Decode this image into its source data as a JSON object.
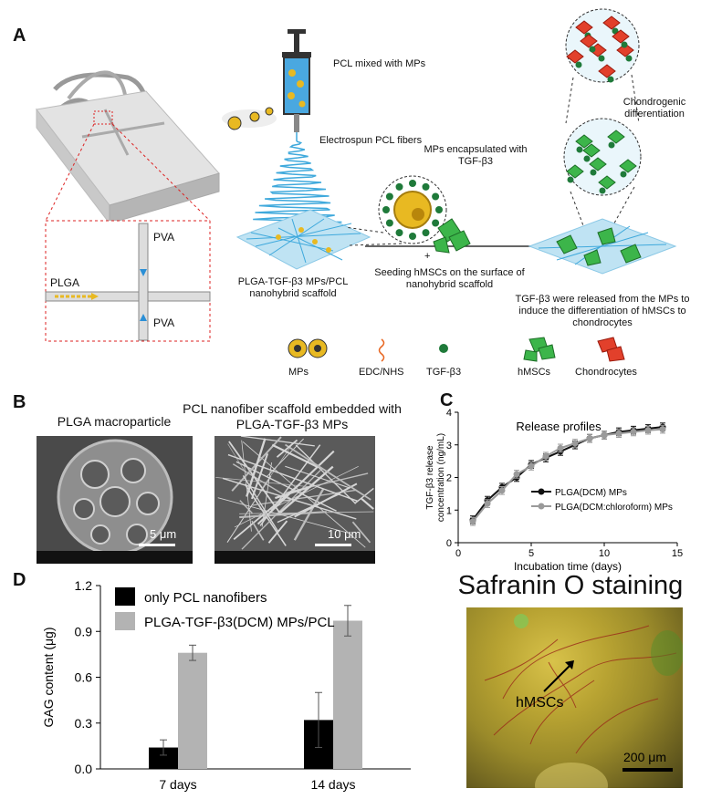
{
  "panel_a": {
    "label": "A",
    "device": {
      "plga": "PLGA",
      "pva_top": "PVA",
      "pva_bottom": "PVA"
    },
    "syringe_label": "PCL mixed with MPs",
    "fibers_label": "Electrospun PCL fibers",
    "mps_encapsulated": "MPs encapsulated with TGF-β3",
    "scaffold_label": "PLGA-TGF-β3 MPs/PCL nanohybrid scaffold",
    "seeding_label": "Seeding hMSCs on the surface of nanohybrid scaffold",
    "plus": "+",
    "release_label": "TGF-β3 were released from the MPs to induce the differentiation of hMSCs to chondrocytes",
    "chondrogenic_label": "Chondrogenic differentiation",
    "legend": {
      "mps": "MPs",
      "edc": "EDC/NHS",
      "tgf": "TGF-β3",
      "hmsc": "hMSCs",
      "chondro": "Chondrocytes"
    },
    "colors": {
      "fiber": "#3fa9dc",
      "mp": "#e8b922",
      "tgf": "#1f7a3a",
      "hmsc": "#3cb54a",
      "chondro": "#e2402b",
      "edc": "#e8641e"
    }
  },
  "panel_b": {
    "label": "B",
    "left_title": "PLGA macroparticle",
    "left_scale": "5 μm",
    "right_title": "PCL nanofiber scaffold embedded with PLGA-TGF-β3 MPs",
    "right_scale": "10 μm"
  },
  "panel_c": {
    "label": "C",
    "chart_data": {
      "type": "line",
      "title": "Release profiles",
      "xlabel": "Incubation time (days)",
      "ylabel": "TGF-β3 release concentration (ng/mL)",
      "xlim": [
        0,
        15
      ],
      "ylim": [
        0,
        4
      ],
      "xticks": [
        0,
        5,
        10,
        15
      ],
      "yticks": [
        0,
        1,
        2,
        3,
        4
      ],
      "x": [
        1,
        2,
        3,
        4,
        5,
        6,
        7,
        8,
        9,
        10,
        11,
        12,
        13,
        14
      ],
      "series": [
        {
          "name": "PLGA(DCM) MPs",
          "color": "#111111",
          "values": [
            0.7,
            1.3,
            1.7,
            2.0,
            2.4,
            2.6,
            2.8,
            3.0,
            3.2,
            3.3,
            3.4,
            3.45,
            3.5,
            3.55
          ],
          "errors": [
            0.12,
            0.12,
            0.12,
            0.12,
            0.12,
            0.12,
            0.12,
            0.12,
            0.12,
            0.12,
            0.12,
            0.12,
            0.12,
            0.12
          ]
        },
        {
          "name": "PLGA(DCM:chloroform) MPs",
          "color": "#9a9a9a",
          "values": [
            0.65,
            1.2,
            1.6,
            2.1,
            2.35,
            2.65,
            2.9,
            3.05,
            3.2,
            3.3,
            3.35,
            3.4,
            3.45,
            3.48
          ],
          "errors": [
            0.12,
            0.12,
            0.12,
            0.12,
            0.12,
            0.12,
            0.12,
            0.12,
            0.12,
            0.12,
            0.12,
            0.12,
            0.12,
            0.12
          ]
        }
      ],
      "legend": "bottom-right"
    }
  },
  "panel_d": {
    "label": "D",
    "chart_data": {
      "type": "bar",
      "categories": [
        "7 days",
        "14 days"
      ],
      "ylabel": "GAG content (μg)",
      "ylim": [
        0,
        1.2
      ],
      "yticks": [
        "0.0",
        "0.3",
        "0.6",
        "0.9",
        "1.2"
      ],
      "series": [
        {
          "name": "only PCL nanofibers",
          "color": "#000000",
          "values": [
            0.14,
            0.32
          ],
          "errors": [
            0.05,
            0.18
          ]
        },
        {
          "name": "PLGA-TGF-β3(DCM) MPs/PCL",
          "color": "#b3b3b3",
          "values": [
            0.76,
            0.97
          ],
          "errors": [
            0.05,
            0.1
          ]
        }
      ],
      "legend": "top-left"
    },
    "staining_title": "Safranin O staining",
    "staining_arrow_label": "hMSCs",
    "staining_scale": "200 μm"
  }
}
